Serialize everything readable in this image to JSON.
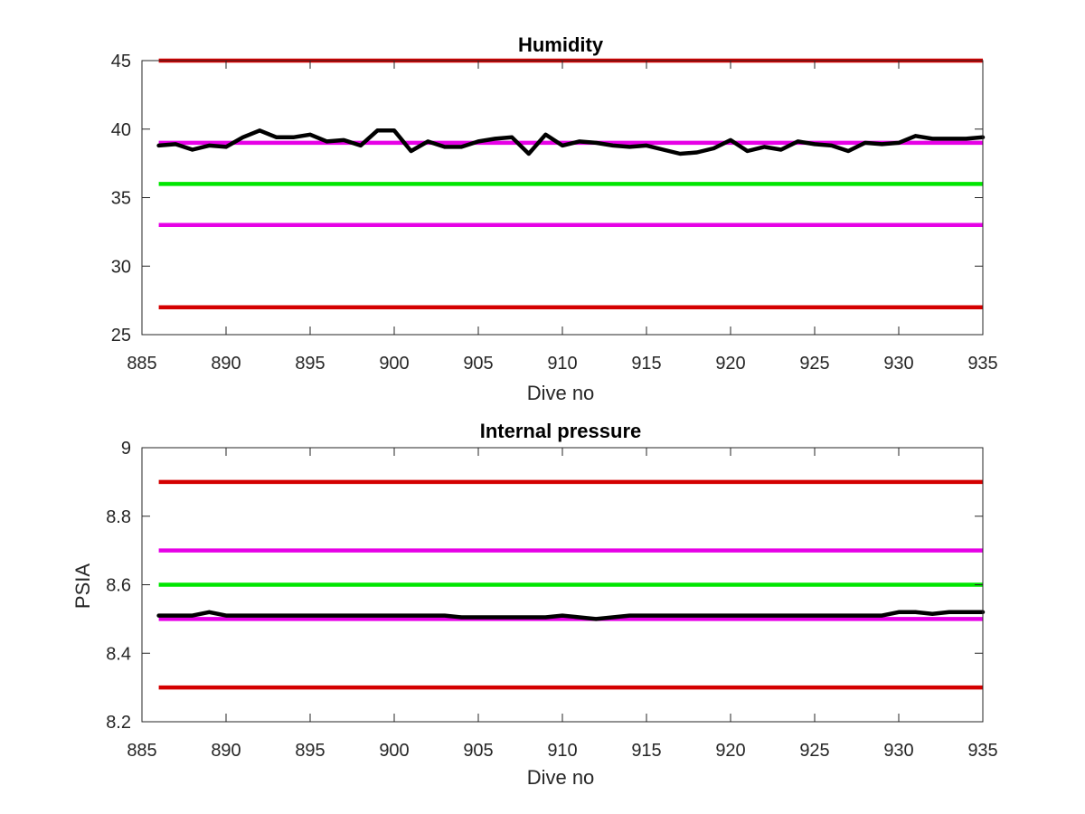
{
  "chart_data": [
    {
      "type": "line",
      "title": "Humidity",
      "xlabel": "Dive no",
      "ylabel": "",
      "xlim": [
        886,
        935
      ],
      "ylim": [
        25,
        45
      ],
      "xticks": [
        885,
        890,
        895,
        900,
        905,
        910,
        915,
        920,
        925,
        930,
        935
      ],
      "yticks": [
        25,
        30,
        35,
        40,
        45
      ],
      "x_tick_labels": [
        "885",
        "890",
        "895",
        "900",
        "905",
        "910",
        "915",
        "920",
        "925",
        "930",
        "935"
      ],
      "y_tick_labels": [
        "25",
        "30",
        "35",
        "40",
        "45"
      ],
      "grid": false,
      "reference_lines": [
        {
          "y": 45,
          "color": "#d40000"
        },
        {
          "y": 39,
          "color": "#e600e6"
        },
        {
          "y": 36,
          "color": "#00e600"
        },
        {
          "y": 33,
          "color": "#e600e6"
        },
        {
          "y": 27,
          "color": "#d40000"
        }
      ],
      "series": [
        {
          "color": "#000000",
          "x": [
            886,
            887,
            888,
            889,
            890,
            891,
            892,
            893,
            894,
            895,
            896,
            897,
            898,
            899,
            900,
            901,
            902,
            903,
            904,
            905,
            906,
            907,
            908,
            909,
            910,
            911,
            912,
            913,
            914,
            915,
            916,
            917,
            918,
            919,
            920,
            921,
            922,
            923,
            924,
            925,
            926,
            927,
            928,
            929,
            930,
            931,
            932,
            933,
            934,
            935
          ],
          "y": [
            38.8,
            38.9,
            38.5,
            38.8,
            38.7,
            39.4,
            39.9,
            39.4,
            39.4,
            39.6,
            39.1,
            39.2,
            38.8,
            39.9,
            39.9,
            38.4,
            39.1,
            38.7,
            38.7,
            39.1,
            39.3,
            39.4,
            38.2,
            39.6,
            38.8,
            39.1,
            39.0,
            38.8,
            38.7,
            38.8,
            38.5,
            38.2,
            38.3,
            38.6,
            39.2,
            38.4,
            38.7,
            38.5,
            39.1,
            38.9,
            38.8,
            38.4,
            39.0,
            38.9,
            39.0,
            39.5,
            39.3,
            39.3,
            39.3,
            39.4
          ]
        }
      ]
    },
    {
      "type": "line",
      "title": "Internal pressure",
      "xlabel": "Dive no",
      "ylabel": "PSIA",
      "xlim": [
        886,
        935
      ],
      "ylim": [
        8.2,
        9.0
      ],
      "xticks": [
        885,
        890,
        895,
        900,
        905,
        910,
        915,
        920,
        925,
        930,
        935
      ],
      "yticks": [
        8.2,
        8.4,
        8.6,
        8.8,
        9.0
      ],
      "x_tick_labels": [
        "885",
        "890",
        "895",
        "900",
        "905",
        "910",
        "915",
        "920",
        "925",
        "930",
        "935"
      ],
      "y_tick_labels": [
        "8.2",
        "8.4",
        "8.6",
        "8.8",
        "9"
      ],
      "grid": false,
      "reference_lines": [
        {
          "y": 8.9,
          "color": "#d40000"
        },
        {
          "y": 8.7,
          "color": "#e600e6"
        },
        {
          "y": 8.6,
          "color": "#00e600"
        },
        {
          "y": 8.5,
          "color": "#e600e6"
        },
        {
          "y": 8.3,
          "color": "#d40000"
        }
      ],
      "series": [
        {
          "color": "#000000",
          "x": [
            886,
            887,
            888,
            889,
            890,
            891,
            892,
            893,
            894,
            895,
            896,
            897,
            898,
            899,
            900,
            901,
            902,
            903,
            904,
            905,
            906,
            907,
            908,
            909,
            910,
            911,
            912,
            913,
            914,
            915,
            916,
            917,
            918,
            919,
            920,
            921,
            922,
            923,
            924,
            925,
            926,
            927,
            928,
            929,
            930,
            931,
            932,
            933,
            934,
            935
          ],
          "y": [
            8.51,
            8.51,
            8.51,
            8.52,
            8.51,
            8.51,
            8.51,
            8.51,
            8.51,
            8.51,
            8.51,
            8.51,
            8.51,
            8.51,
            8.51,
            8.51,
            8.51,
            8.51,
            8.505,
            8.505,
            8.505,
            8.505,
            8.505,
            8.505,
            8.51,
            8.505,
            8.5,
            8.505,
            8.51,
            8.51,
            8.51,
            8.51,
            8.51,
            8.51,
            8.51,
            8.51,
            8.51,
            8.51,
            8.51,
            8.51,
            8.51,
            8.51,
            8.51,
            8.51,
            8.52,
            8.52,
            8.515,
            8.52,
            8.52,
            8.52
          ]
        }
      ]
    }
  ]
}
